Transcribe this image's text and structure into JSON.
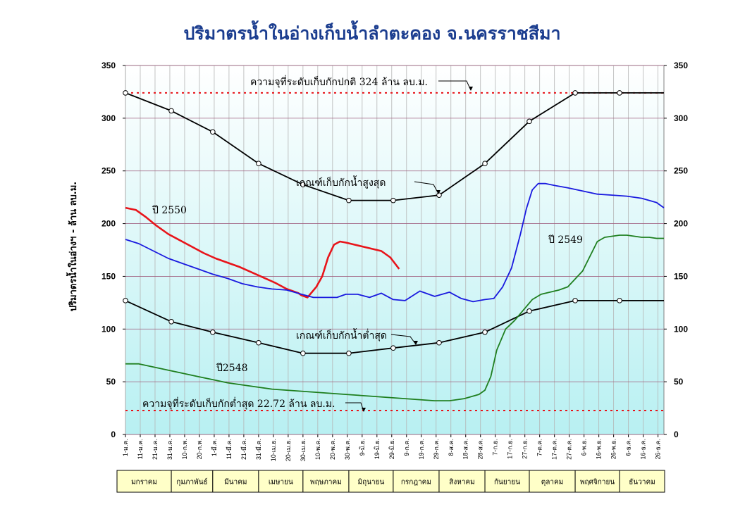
{
  "chart_data": {
    "type": "line",
    "title": "ปริมาตรน้ำในอ่างเก็บน้ำลำตะคอง จ.นครราชสีมา",
    "ylabel": "ปริมาตรน้ำในอ่างฯ - ล้าน ลบ.ม.",
    "ylim": [
      0,
      350
    ],
    "yticks": [
      0,
      50,
      100,
      150,
      200,
      250,
      300,
      350
    ],
    "grid": true,
    "x_tick_labels": [
      "1-ม.ค.",
      "11-ม.ค.",
      "21-ม.ค.",
      "31-ม.ค.",
      "10-ก.พ.",
      "20-ก.พ.",
      "1-มี.ค.",
      "11-มี.ค.",
      "21-มี.ค.",
      "31-มี.ค.",
      "10-เม.ย.",
      "20-เม.ย.",
      "30-เม.ย.",
      "10-พ.ค.",
      "20-พ.ค.",
      "30-พ.ค.",
      "9-มิ.ย.",
      "19-มิ.ย.",
      "29-มิ.ย.",
      "9-ก.ค.",
      "19-ก.ค.",
      "29-ก.ค.",
      "8-ส.ค.",
      "18-ส.ค.",
      "28-ส.ค.",
      "7-ก.ย.",
      "17-ก.ย.",
      "27-ก.ย.",
      "7-ต.ค.",
      "17-ต.ค.",
      "27-ต.ค.",
      "6-พ.ย.",
      "16-พ.ย.",
      "26-พ.ย.",
      "6-ธ.ค.",
      "16-ธ.ค.",
      "26-ธ.ค."
    ],
    "months": [
      "มกราคม",
      "กุมภาพันธ์",
      "มีนาคม",
      "เมษายน",
      "พฤษภาคม",
      "มิถุนายน",
      "กรกฎาคม",
      "สิงหาคม",
      "กันยายน",
      "ตุลาคม",
      "พฤศจิกายน",
      "ธันวาคม"
    ],
    "month_days": [
      31,
      28,
      31,
      30,
      31,
      30,
      31,
      31,
      30,
      31,
      30,
      31
    ],
    "x_unit": "day of year",
    "reference_lines": [
      {
        "label": "ความจุที่ระดับเก็บกักปกติ 324 ล้าน ลบ.ม.",
        "value": 324,
        "color": "#e8141a"
      },
      {
        "label": "ความจุที่ระดับเก็บกักต่ำสุด 22.72 ล้าน ลบ.ม.",
        "value": 22.72,
        "color": "#e8141a"
      }
    ],
    "series": [
      {
        "name": "เกณฑ์เก็บกักน้ำสูงสุด",
        "color": "#000000",
        "markers": true,
        "x": [
          1,
          32,
          60,
          91,
          121,
          152,
          182,
          213,
          244,
          274,
          305,
          335,
          365
        ],
        "y": [
          324,
          307,
          287,
          257,
          237,
          222,
          222,
          227,
          257,
          297,
          324,
          324,
          324
        ]
      },
      {
        "name": "เกณฑ์เก็บกักน้ำต่ำสุด",
        "color": "#000000",
        "markers": true,
        "x": [
          1,
          32,
          60,
          91,
          121,
          152,
          182,
          213,
          244,
          274,
          305,
          335,
          365
        ],
        "y": [
          127,
          107,
          97,
          87,
          77,
          77,
          82,
          87,
          97,
          117,
          127,
          127,
          127
        ]
      },
      {
        "name": "ปี 2550",
        "color": "#e8141a",
        "x": [
          1,
          8,
          15,
          22,
          30,
          38,
          46,
          54,
          62,
          70,
          78,
          86,
          94,
          102,
          110,
          118,
          120,
          124,
          130,
          134,
          138,
          142,
          146,
          150,
          156,
          162,
          168,
          174,
          180,
          186
        ],
        "y": [
          215,
          213,
          206,
          198,
          190,
          184,
          178,
          172,
          167,
          163,
          159,
          154,
          149,
          144,
          138,
          134,
          132,
          130,
          140,
          150,
          168,
          180,
          183,
          182,
          180,
          178,
          176,
          174,
          168,
          157
        ]
      },
      {
        "name": "ปี 2549",
        "color": "#1a1adf",
        "x": [
          1,
          10,
          20,
          30,
          40,
          50,
          60,
          70,
          80,
          90,
          100,
          110,
          120,
          128,
          136,
          144,
          150,
          158,
          166,
          174,
          182,
          190,
          200,
          210,
          220,
          228,
          236,
          244,
          250,
          256,
          262,
          268,
          272,
          276,
          280,
          285,
          292,
          300,
          310,
          320,
          330,
          340,
          350,
          360,
          365
        ],
        "y": [
          185,
          181,
          174,
          167,
          162,
          157,
          152,
          148,
          143,
          140,
          138,
          137,
          133,
          130,
          130,
          130,
          133,
          133,
          130,
          134,
          128,
          127,
          136,
          131,
          135,
          129,
          126,
          128,
          129,
          140,
          158,
          190,
          214,
          232,
          238,
          238,
          236,
          234,
          231,
          228,
          227,
          226,
          224,
          220,
          215
        ]
      },
      {
        "name": "ปี 2548",
        "color": "#1f7f1f",
        "x": [
          1,
          10,
          20,
          30,
          40,
          50,
          60,
          70,
          80,
          90,
          100,
          110,
          120,
          130,
          140,
          150,
          160,
          170,
          180,
          190,
          200,
          210,
          220,
          230,
          240,
          244,
          248,
          252,
          258,
          264,
          270,
          276,
          282,
          288,
          294,
          300,
          310,
          320,
          325,
          330,
          335,
          340,
          345,
          350,
          355,
          360,
          365
        ],
        "y": [
          67,
          67,
          64,
          61,
          58,
          55,
          52,
          49,
          47,
          45,
          43,
          42,
          41,
          40,
          39,
          38,
          37,
          36,
          35,
          34,
          33,
          32,
          32,
          34,
          38,
          42,
          55,
          80,
          100,
          108,
          118,
          128,
          133,
          135,
          137,
          140,
          155,
          183,
          187,
          188,
          189,
          189,
          188,
          187,
          187,
          186,
          186
        ]
      }
    ],
    "annotations": [
      {
        "text": "ความจุที่ระดับเก็บกักปกติ 324 ล้าน ลบ.ม."
      },
      {
        "text": "เกณฑ์เก็บกักน้ำสูงสุด"
      },
      {
        "text": "เกณฑ์เก็บกักน้ำต่ำสุด"
      },
      {
        "text": "ความจุที่ระดับเก็บกักต่ำสุด 22.72 ล้าน ลบ.ม."
      },
      {
        "text": "ปี 2550"
      },
      {
        "text": "ปี 2549"
      },
      {
        "text": "ปี2548"
      }
    ]
  }
}
